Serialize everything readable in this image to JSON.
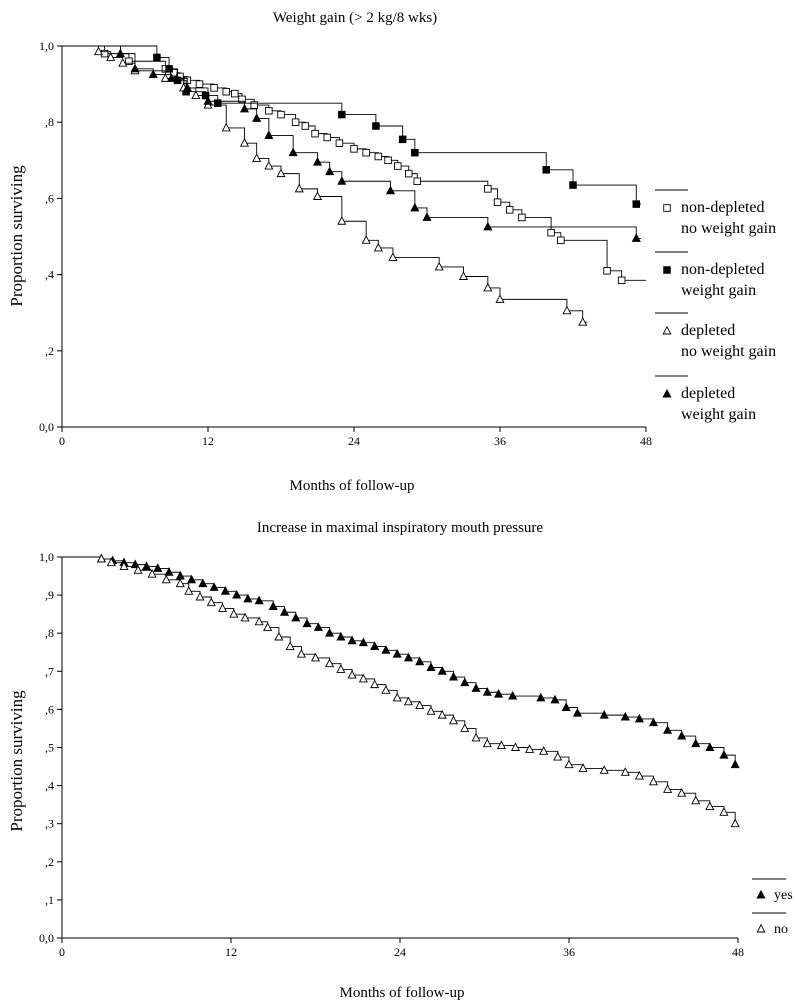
{
  "chart_data": [
    {
      "type": "line",
      "subtype": "kaplan-meier",
      "title": "Weight gain (> 2 kg/8 wks)",
      "xlabel": "Months of follow-up",
      "ylabel": "Proportion surviving",
      "xlim": [
        0,
        48
      ],
      "ylim": [
        0,
        1
      ],
      "xticks": [
        0,
        12,
        24,
        36,
        48
      ],
      "xtick_labels": [
        "0",
        "12",
        "24",
        "36",
        "48"
      ],
      "yticks": [
        0,
        0.2,
        0.4,
        0.6,
        0.8,
        1.0
      ],
      "ytick_labels": [
        "0,0",
        ",2",
        ",4",
        ",6",
        ",8",
        "1,0"
      ],
      "grid": false,
      "legend_position": "right",
      "series": [
        {
          "name_lines": [
            "non-depleted",
            "no weight gain"
          ],
          "marker": "square-open",
          "points": [
            [
              0,
              1.0
            ],
            [
              3.5,
              0.98
            ],
            [
              5.5,
              0.96
            ],
            [
              8.5,
              0.94
            ],
            [
              9.2,
              0.93
            ],
            [
              9.7,
              0.92
            ],
            [
              10.3,
              0.91
            ],
            [
              11.3,
              0.9
            ],
            [
              12.5,
              0.89
            ],
            [
              13.5,
              0.88
            ],
            [
              14.2,
              0.875
            ],
            [
              14.8,
              0.86
            ],
            [
              15.8,
              0.845
            ],
            [
              17.0,
              0.83
            ],
            [
              18.0,
              0.82
            ],
            [
              19.2,
              0.8
            ],
            [
              20.0,
              0.79
            ],
            [
              20.8,
              0.77
            ],
            [
              21.8,
              0.76
            ],
            [
              22.8,
              0.745
            ],
            [
              24.0,
              0.73
            ],
            [
              25.0,
              0.72
            ],
            [
              26.0,
              0.71
            ],
            [
              26.8,
              0.7
            ],
            [
              27.6,
              0.685
            ],
            [
              28.5,
              0.665
            ],
            [
              29.2,
              0.645
            ],
            [
              35.0,
              0.625
            ],
            [
              35.8,
              0.59
            ],
            [
              36.8,
              0.57
            ],
            [
              37.8,
              0.55
            ],
            [
              40.2,
              0.51
            ],
            [
              41.0,
              0.49
            ],
            [
              44.8,
              0.41
            ],
            [
              46.0,
              0.385
            ],
            [
              48.0,
              0.385
            ]
          ]
        },
        {
          "name_lines": [
            "non-depleted",
            "weight gain"
          ],
          "marker": "square-filled",
          "points": [
            [
              0,
              1.0
            ],
            [
              7.8,
              0.97
            ],
            [
              8.8,
              0.94
            ],
            [
              9.5,
              0.91
            ],
            [
              10.2,
              0.88
            ],
            [
              11.8,
              0.87
            ],
            [
              12.8,
              0.85
            ],
            [
              23.0,
              0.82
            ],
            [
              25.8,
              0.79
            ],
            [
              28.0,
              0.755
            ],
            [
              29.0,
              0.72
            ],
            [
              39.8,
              0.675
            ],
            [
              42.0,
              0.635
            ],
            [
              47.2,
              0.585
            ],
            [
              47.6,
              0.585
            ]
          ]
        },
        {
          "name_lines": [
            "depleted",
            "no weight gain"
          ],
          "marker": "triangle-open",
          "points": [
            [
              0,
              1.0
            ],
            [
              3.0,
              0.985
            ],
            [
              4.0,
              0.97
            ],
            [
              5.0,
              0.955
            ],
            [
              6.0,
              0.935
            ],
            [
              8.5,
              0.915
            ],
            [
              10.0,
              0.89
            ],
            [
              11.0,
              0.87
            ],
            [
              12.0,
              0.845
            ],
            [
              13.5,
              0.785
            ],
            [
              15.0,
              0.745
            ],
            [
              16.0,
              0.705
            ],
            [
              17.0,
              0.685
            ],
            [
              18.0,
              0.665
            ],
            [
              19.5,
              0.625
            ],
            [
              21.0,
              0.605
            ],
            [
              23.0,
              0.54
            ],
            [
              25.0,
              0.49
            ],
            [
              26.0,
              0.47
            ],
            [
              27.2,
              0.445
            ],
            [
              31.0,
              0.42
            ],
            [
              33.0,
              0.395
            ],
            [
              35.0,
              0.365
            ],
            [
              36.0,
              0.335
            ],
            [
              41.5,
              0.305
            ],
            [
              42.8,
              0.275
            ],
            [
              43.2,
              0.275
            ]
          ]
        },
        {
          "name_lines": [
            "depleted",
            "weight gain"
          ],
          "marker": "triangle-filled",
          "points": [
            [
              0,
              1.0
            ],
            [
              4.8,
              0.98
            ],
            [
              6.0,
              0.94
            ],
            [
              7.5,
              0.925
            ],
            [
              9.0,
              0.915
            ],
            [
              10.3,
              0.89
            ],
            [
              12.0,
              0.855
            ],
            [
              15.0,
              0.835
            ],
            [
              16.0,
              0.81
            ],
            [
              17.0,
              0.765
            ],
            [
              19.0,
              0.72
            ],
            [
              21.0,
              0.695
            ],
            [
              22.0,
              0.67
            ],
            [
              23.0,
              0.645
            ],
            [
              27.0,
              0.62
            ],
            [
              29.0,
              0.575
            ],
            [
              30.0,
              0.55
            ],
            [
              35.0,
              0.525
            ],
            [
              47.2,
              0.495
            ],
            [
              47.6,
              0.495
            ]
          ]
        }
      ]
    },
    {
      "type": "line",
      "subtype": "kaplan-meier",
      "title": "Increase in maximal inspiratory mouth pressure",
      "xlabel": "Months of follow-up",
      "ylabel": "Proportion surviving",
      "xlim": [
        0,
        48
      ],
      "ylim": [
        0,
        1
      ],
      "xticks": [
        0,
        12,
        24,
        36,
        48
      ],
      "xtick_labels": [
        "0",
        "12",
        "24",
        "36",
        "48"
      ],
      "yticks": [
        0,
        0.1,
        0.2,
        0.3,
        0.4,
        0.5,
        0.6,
        0.7,
        0.8,
        0.9,
        1.0
      ],
      "ytick_labels": [
        "0,0",
        ",1",
        ",2",
        ",3",
        ",4",
        ",5",
        ",6",
        ",7",
        ",8",
        ",9",
        "1,0"
      ],
      "grid": false,
      "legend_position": "bottom-right",
      "series": [
        {
          "name_lines": [
            "yes"
          ],
          "marker": "triangle-filled",
          "points": [
            [
              0,
              1.0
            ],
            [
              2.8,
              0.995
            ],
            [
              3.6,
              0.99
            ],
            [
              4.4,
              0.985
            ],
            [
              5.2,
              0.98
            ],
            [
              6.0,
              0.975
            ],
            [
              6.8,
              0.97
            ],
            [
              7.6,
              0.96
            ],
            [
              8.4,
              0.95
            ],
            [
              9.2,
              0.94
            ],
            [
              10.0,
              0.93
            ],
            [
              10.8,
              0.92
            ],
            [
              11.6,
              0.91
            ],
            [
              12.4,
              0.9
            ],
            [
              13.2,
              0.89
            ],
            [
              14.0,
              0.885
            ],
            [
              15.0,
              0.87
            ],
            [
              15.8,
              0.855
            ],
            [
              16.6,
              0.84
            ],
            [
              17.4,
              0.825
            ],
            [
              18.2,
              0.815
            ],
            [
              19.0,
              0.8
            ],
            [
              19.8,
              0.79
            ],
            [
              20.6,
              0.78
            ],
            [
              21.4,
              0.775
            ],
            [
              22.2,
              0.765
            ],
            [
              23.0,
              0.755
            ],
            [
              23.8,
              0.745
            ],
            [
              24.6,
              0.735
            ],
            [
              25.4,
              0.725
            ],
            [
              26.2,
              0.71
            ],
            [
              27.0,
              0.7
            ],
            [
              27.8,
              0.685
            ],
            [
              28.6,
              0.67
            ],
            [
              29.4,
              0.655
            ],
            [
              30.2,
              0.645
            ],
            [
              31.0,
              0.64
            ],
            [
              32.0,
              0.635
            ],
            [
              34.0,
              0.63
            ],
            [
              35.0,
              0.625
            ],
            [
              35.8,
              0.605
            ],
            [
              36.6,
              0.59
            ],
            [
              38.5,
              0.585
            ],
            [
              40.0,
              0.58
            ],
            [
              41.0,
              0.575
            ],
            [
              42.0,
              0.565
            ],
            [
              43.0,
              0.545
            ],
            [
              44.0,
              0.53
            ],
            [
              45.0,
              0.51
            ],
            [
              46.0,
              0.5
            ],
            [
              47.0,
              0.48
            ],
            [
              47.8,
              0.455
            ]
          ]
        },
        {
          "name_lines": [
            "no"
          ],
          "marker": "triangle-open",
          "points": [
            [
              0,
              1.0
            ],
            [
              2.8,
              0.995
            ],
            [
              3.5,
              0.985
            ],
            [
              4.4,
              0.975
            ],
            [
              5.4,
              0.965
            ],
            [
              6.4,
              0.955
            ],
            [
              7.4,
              0.94
            ],
            [
              8.4,
              0.93
            ],
            [
              9.0,
              0.91
            ],
            [
              9.8,
              0.895
            ],
            [
              10.6,
              0.88
            ],
            [
              11.4,
              0.865
            ],
            [
              12.2,
              0.85
            ],
            [
              13.0,
              0.84
            ],
            [
              14.0,
              0.83
            ],
            [
              14.6,
              0.815
            ],
            [
              15.4,
              0.79
            ],
            [
              16.2,
              0.765
            ],
            [
              17.0,
              0.745
            ],
            [
              18.0,
              0.735
            ],
            [
              19.0,
              0.72
            ],
            [
              19.8,
              0.705
            ],
            [
              20.6,
              0.69
            ],
            [
              21.4,
              0.68
            ],
            [
              22.2,
              0.665
            ],
            [
              23.0,
              0.65
            ],
            [
              23.8,
              0.63
            ],
            [
              24.6,
              0.62
            ],
            [
              25.4,
              0.61
            ],
            [
              26.2,
              0.595
            ],
            [
              27.0,
              0.585
            ],
            [
              27.8,
              0.57
            ],
            [
              28.6,
              0.55
            ],
            [
              29.4,
              0.525
            ],
            [
              30.2,
              0.51
            ],
            [
              31.2,
              0.505
            ],
            [
              32.2,
              0.5
            ],
            [
              33.2,
              0.495
            ],
            [
              34.2,
              0.49
            ],
            [
              35.2,
              0.475
            ],
            [
              36.0,
              0.455
            ],
            [
              37.0,
              0.445
            ],
            [
              38.5,
              0.44
            ],
            [
              40.0,
              0.435
            ],
            [
              41.0,
              0.425
            ],
            [
              42.0,
              0.41
            ],
            [
              43.0,
              0.39
            ],
            [
              44.0,
              0.38
            ],
            [
              45.0,
              0.36
            ],
            [
              46.0,
              0.345
            ],
            [
              47.0,
              0.33
            ],
            [
              47.8,
              0.3
            ]
          ]
        }
      ]
    }
  ]
}
